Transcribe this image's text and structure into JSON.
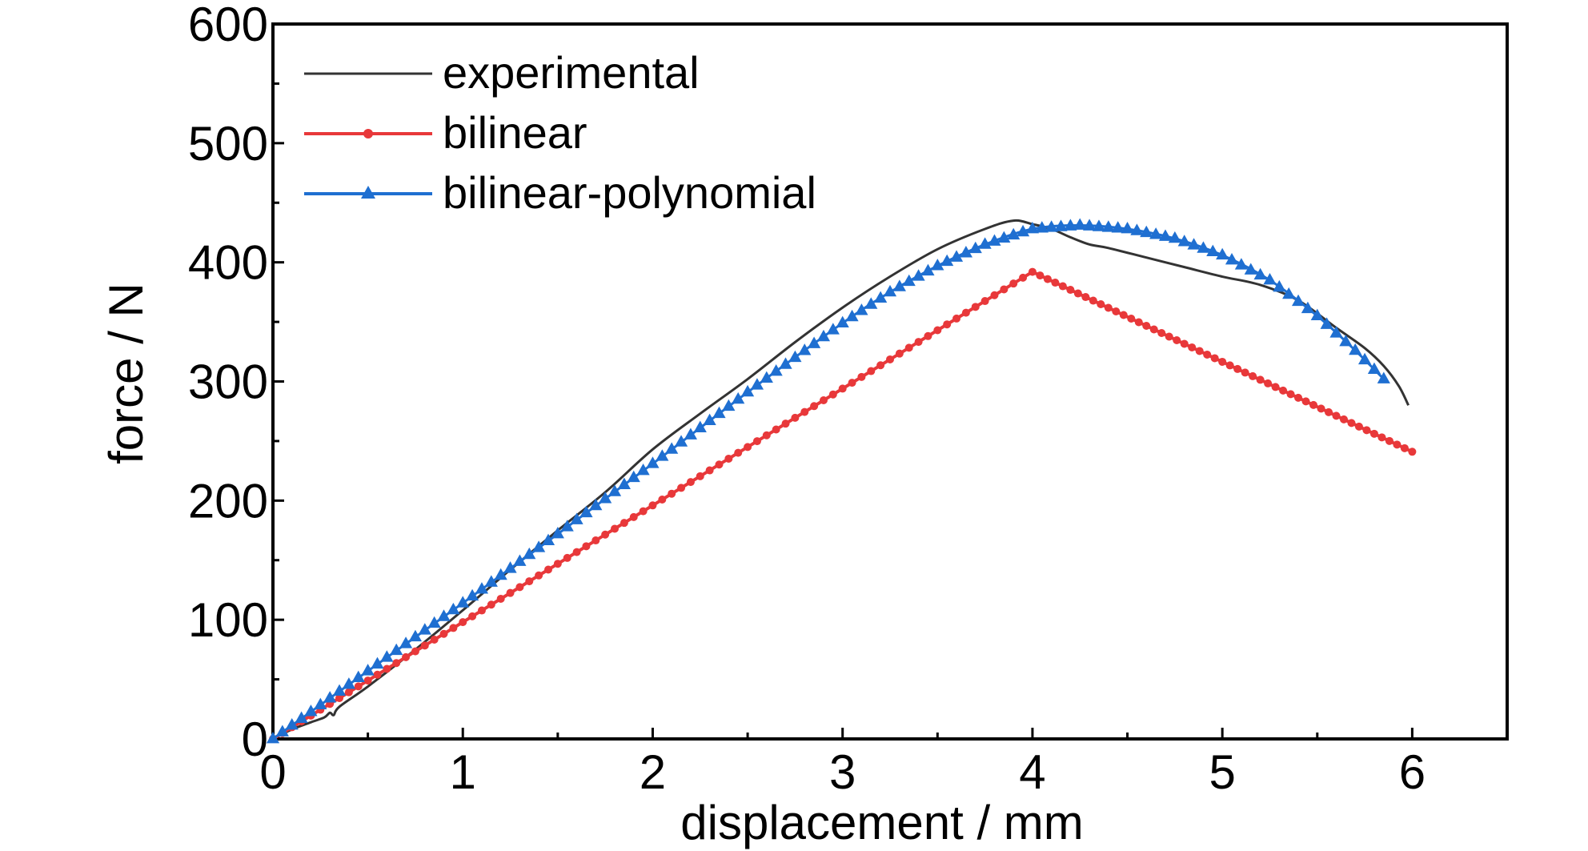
{
  "chart_data": {
    "type": "line",
    "title": "",
    "xlabel": "displacement / mm",
    "ylabel": "force / N",
    "xlim": [
      0,
      6.5
    ],
    "ylim": [
      0,
      600
    ],
    "x_ticks": [
      "0",
      "1",
      "2",
      "3",
      "4",
      "5",
      "6"
    ],
    "y_ticks": [
      "0",
      "100",
      "200",
      "300",
      "400",
      "500",
      "600"
    ],
    "grid": false,
    "legend_position": "top-left",
    "series": [
      {
        "name": "experimental",
        "color": "#333333",
        "marker": "none",
        "points": [
          [
            0,
            0
          ],
          [
            0.1,
            8
          ],
          [
            0.2,
            14
          ],
          [
            0.27,
            18
          ],
          [
            0.3,
            22
          ],
          [
            0.32,
            20
          ],
          [
            0.35,
            27
          ],
          [
            0.5,
            44
          ],
          [
            0.75,
            75
          ],
          [
            1.0,
            108
          ],
          [
            1.25,
            142
          ],
          [
            1.5,
            175
          ],
          [
            1.75,
            207
          ],
          [
            2.0,
            243
          ],
          [
            2.25,
            273
          ],
          [
            2.5,
            302
          ],
          [
            2.75,
            333
          ],
          [
            3.0,
            362
          ],
          [
            3.25,
            388
          ],
          [
            3.5,
            411
          ],
          [
            3.75,
            428
          ],
          [
            3.9,
            435
          ],
          [
            4.0,
            432
          ],
          [
            4.1,
            428
          ],
          [
            4.2,
            421
          ],
          [
            4.3,
            415
          ],
          [
            4.4,
            412
          ],
          [
            4.6,
            404
          ],
          [
            4.8,
            396
          ],
          [
            5.0,
            388
          ],
          [
            5.2,
            381
          ],
          [
            5.4,
            368
          ],
          [
            5.6,
            345
          ],
          [
            5.75,
            328
          ],
          [
            5.85,
            313
          ],
          [
            5.93,
            296
          ],
          [
            5.98,
            280
          ]
        ]
      },
      {
        "name": "bilinear",
        "color": "#e8383a",
        "marker": "circle",
        "points": [
          [
            0,
            0
          ],
          [
            4.0,
            392
          ],
          [
            6.0,
            241
          ]
        ]
      },
      {
        "name": "bilinear-polynomial",
        "color": "#1f6fd1",
        "marker": "triangle",
        "points": [
          [
            0,
            0
          ],
          [
            0.5,
            57
          ],
          [
            1.0,
            114
          ],
          [
            1.5,
            172
          ],
          [
            2.0,
            231
          ],
          [
            2.5,
            291
          ],
          [
            3.0,
            349
          ],
          [
            3.25,
            375
          ],
          [
            3.5,
            397
          ],
          [
            3.75,
            415
          ],
          [
            4.0,
            428
          ],
          [
            4.25,
            431
          ],
          [
            4.5,
            428
          ],
          [
            4.75,
            420
          ],
          [
            5.0,
            406
          ],
          [
            5.25,
            385
          ],
          [
            5.5,
            355
          ],
          [
            5.7,
            326
          ],
          [
            5.85,
            302
          ]
        ]
      }
    ]
  }
}
